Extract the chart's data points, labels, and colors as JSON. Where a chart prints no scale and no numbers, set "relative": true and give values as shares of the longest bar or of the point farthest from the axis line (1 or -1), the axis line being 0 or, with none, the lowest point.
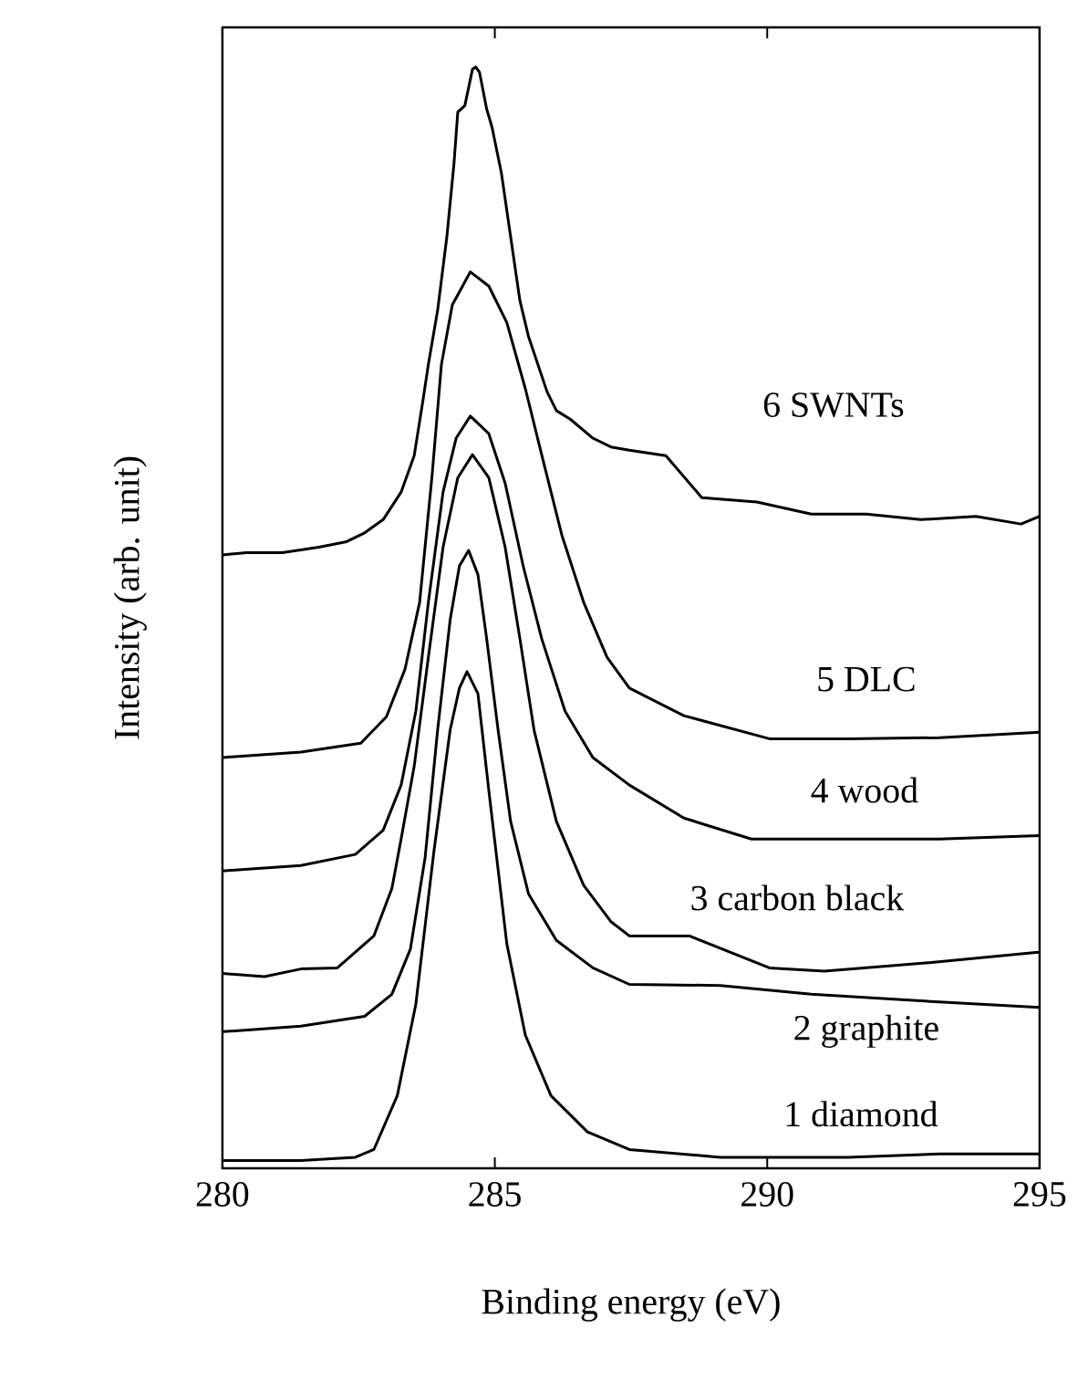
{
  "chart_data": {
    "type": "line",
    "xlabel": "Binding energy (eV)",
    "ylabel": "Intensity (arb. unit)",
    "relative": true,
    "xlim": [
      280,
      295
    ],
    "xticks": [
      280,
      285,
      290,
      295
    ],
    "series": [
      {
        "name": "1 diamond",
        "color": "#000000",
        "x": [
          280,
          281.44,
          282.44,
          282.78,
          283.21,
          283.55,
          283.88,
          284.18,
          284.35,
          284.49,
          284.69,
          284.89,
          285.22,
          285.56,
          286.03,
          286.7,
          287.47,
          289.14,
          291.48,
          293.16,
          295
        ],
        "values": [
          0.007,
          0.007,
          0.01,
          0.017,
          0.066,
          0.149,
          0.287,
          0.398,
          0.436,
          0.451,
          0.431,
          0.343,
          0.204,
          0.121,
          0.066,
          0.033,
          0.017,
          0.01,
          0.01,
          0.013,
          0.013
        ]
      },
      {
        "name": "2 graphite",
        "color": "#000000",
        "x": [
          280,
          281.44,
          282.61,
          283.11,
          283.45,
          283.72,
          283.95,
          284.18,
          284.35,
          284.52,
          284.69,
          284.85,
          285.06,
          285.29,
          285.62,
          286.13,
          286.8,
          287.47,
          289.14,
          290.81,
          293.16,
          295
        ],
        "values": [
          0.124,
          0.129,
          0.138,
          0.158,
          0.199,
          0.282,
          0.398,
          0.498,
          0.547,
          0.561,
          0.539,
          0.481,
          0.398,
          0.315,
          0.249,
          0.207,
          0.182,
          0.167,
          0.166,
          0.158,
          0.151,
          0.146
        ]
      },
      {
        "name": "3 carbon black",
        "color": "#000000",
        "x": [
          280,
          280.77,
          281.44,
          282.11,
          282.78,
          283.11,
          283.28,
          283.52,
          283.78,
          284.05,
          284.32,
          284.59,
          284.89,
          285.19,
          285.46,
          285.72,
          286.13,
          286.63,
          287.13,
          287.47,
          288.57,
          290.04,
          291.05,
          293.06,
          294.93,
          295
        ],
        "values": [
          0.177,
          0.174,
          0.181,
          0.182,
          0.211,
          0.254,
          0.299,
          0.365,
          0.464,
          0.564,
          0.627,
          0.648,
          0.627,
          0.564,
          0.481,
          0.398,
          0.315,
          0.257,
          0.224,
          0.211,
          0.211,
          0.182,
          0.179,
          0.187,
          0.196,
          0.196
        ]
      },
      {
        "name": "4 wood",
        "color": "#000000",
        "x": [
          280,
          281.44,
          282.44,
          282.95,
          283.28,
          283.55,
          283.78,
          284.05,
          284.29,
          284.55,
          284.89,
          285.19,
          285.52,
          285.86,
          286.29,
          286.8,
          287.47,
          288.47,
          289.71,
          291.48,
          293.16,
          295
        ],
        "values": [
          0.27,
          0.275,
          0.285,
          0.307,
          0.348,
          0.415,
          0.514,
          0.614,
          0.663,
          0.683,
          0.667,
          0.622,
          0.547,
          0.481,
          0.415,
          0.373,
          0.348,
          0.318,
          0.299,
          0.299,
          0.299,
          0.302
        ]
      },
      {
        "name": "5 DLC",
        "color": "#000000",
        "x": [
          280,
          281.44,
          282.54,
          283.01,
          283.35,
          283.62,
          283.85,
          284.02,
          284.22,
          284.55,
          284.89,
          285.22,
          285.56,
          285.89,
          286.23,
          286.63,
          287.06,
          287.47,
          288.47,
          290.04,
          291.48,
          293.16,
          295
        ],
        "values": [
          0.373,
          0.378,
          0.386,
          0.41,
          0.453,
          0.514,
          0.63,
          0.73,
          0.784,
          0.814,
          0.801,
          0.768,
          0.708,
          0.642,
          0.575,
          0.514,
          0.464,
          0.436,
          0.411,
          0.39,
          0.39,
          0.391,
          0.396
        ]
      },
      {
        "name": "6 SWNTs",
        "color": "#000000",
        "x": [
          280,
          280.44,
          281.1,
          281.77,
          282.28,
          282.61,
          282.95,
          283.28,
          283.52,
          283.68,
          283.78,
          283.95,
          284.12,
          284.25,
          284.32,
          284.45,
          284.59,
          284.65,
          284.72,
          284.85,
          284.95,
          285.12,
          285.29,
          285.46,
          285.62,
          285.79,
          285.96,
          286.13,
          286.39,
          286.8,
          287.13,
          287.47,
          288.14,
          288.8,
          289.81,
          290.81,
          291.82,
          292.82,
          293.83,
          294.66,
          295
        ],
        "values": [
          0.557,
          0.559,
          0.559,
          0.564,
          0.569,
          0.577,
          0.589,
          0.614,
          0.647,
          0.697,
          0.73,
          0.779,
          0.846,
          0.912,
          0.959,
          0.965,
          0.998,
          1.0,
          0.995,
          0.962,
          0.945,
          0.904,
          0.846,
          0.788,
          0.755,
          0.73,
          0.705,
          0.688,
          0.68,
          0.663,
          0.655,
          0.652,
          0.647,
          0.609,
          0.605,
          0.594,
          0.594,
          0.589,
          0.592,
          0.585,
          0.592
        ]
      }
    ]
  }
}
